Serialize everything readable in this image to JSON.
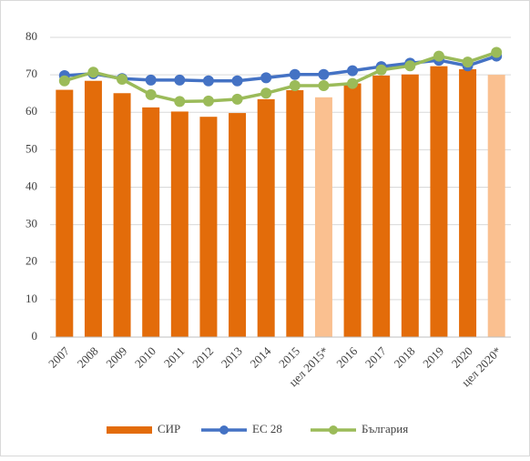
{
  "chart_data": {
    "type": "bar-line",
    "categories": [
      "2007",
      "2008",
      "2009",
      "2010",
      "2011",
      "2012",
      "2013",
      "2014",
      "2015",
      "цел 2015*",
      "2016",
      "2017",
      "2018",
      "2019",
      "2020",
      "цел 2020*"
    ],
    "series": [
      {
        "name": "СИР",
        "kind": "bar",
        "color": "#e36c0a",
        "colors": [
          "#e36c0a",
          "#e36c0a",
          "#e36c0a",
          "#e36c0a",
          "#e36c0a",
          "#e36c0a",
          "#e36c0a",
          "#e36c0a",
          "#e36c0a",
          "#fac090",
          "#e36c0a",
          "#e36c0a",
          "#e36c0a",
          "#e36c0a",
          "#e36c0a",
          "#fac090"
        ],
        "values": [
          66,
          68.4,
          65.1,
          61.3,
          60.2,
          58.8,
          59.8,
          63.5,
          65.9,
          64,
          67.7,
          69.8,
          70.1,
          72.3,
          71.5,
          70
        ]
      },
      {
        "name": "ЕС 28",
        "kind": "line",
        "color": "#4472c4",
        "values": [
          69.8,
          70.3,
          69,
          68.6,
          68.6,
          68.4,
          68.4,
          69.2,
          70.1,
          70.1,
          71.1,
          72.2,
          73.1,
          73.9,
          72.4,
          75
        ]
      },
      {
        "name": "България",
        "kind": "line",
        "color": "#9bbb59",
        "values": [
          68.4,
          70.7,
          68.8,
          64.7,
          62.9,
          63,
          63.5,
          65.1,
          67.1,
          67.1,
          67.7,
          71.3,
          72.4,
          75,
          73.4,
          76
        ]
      }
    ],
    "ylim": [
      0,
      80
    ],
    "yticks": [
      0,
      10,
      20,
      30,
      40,
      50,
      60,
      70,
      80
    ],
    "grid": true,
    "legend": "bottom"
  }
}
